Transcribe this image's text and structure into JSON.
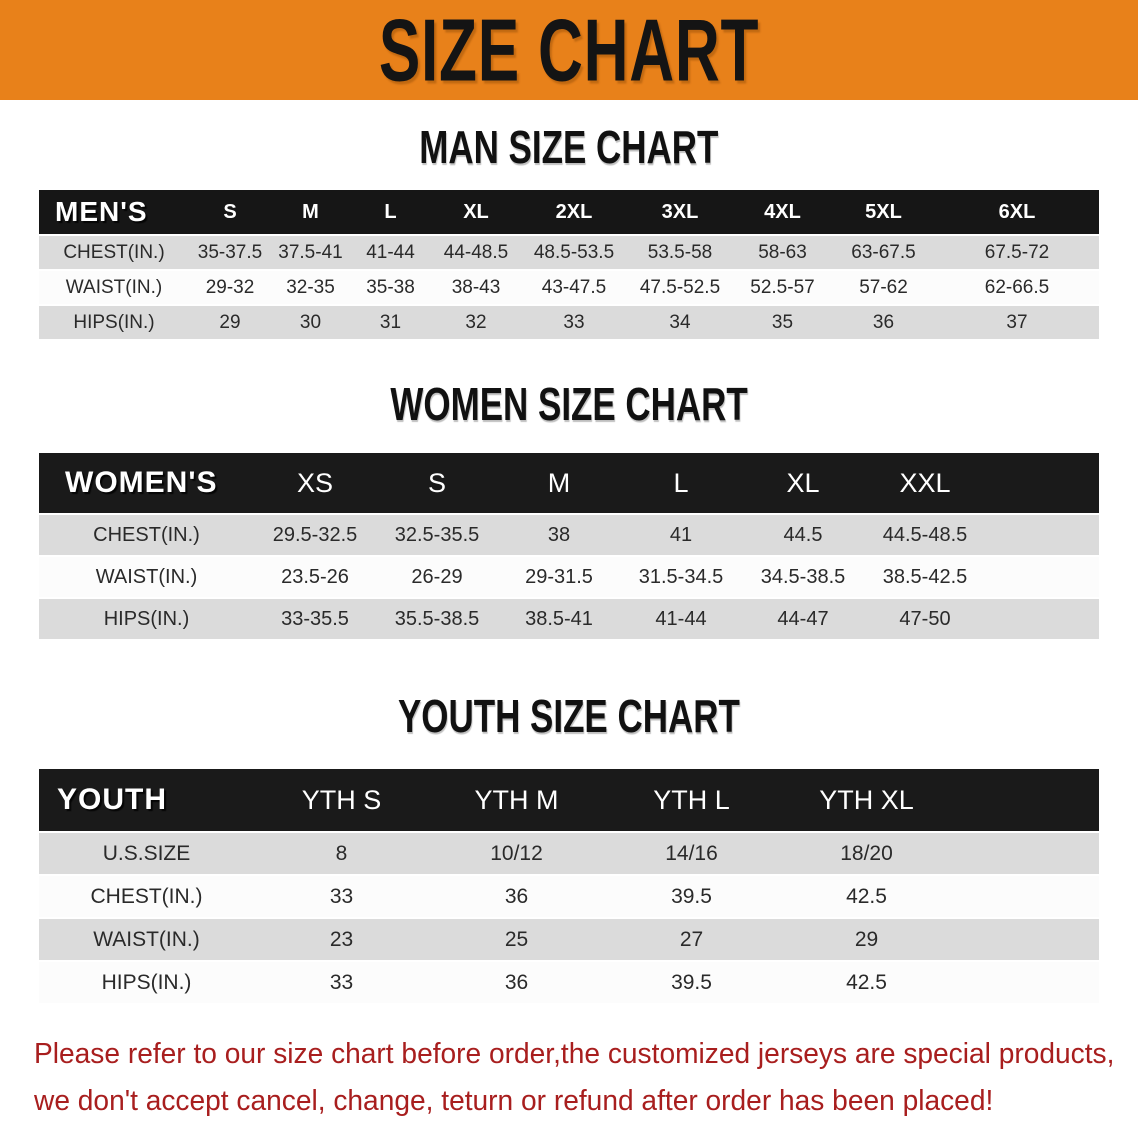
{
  "banner": {
    "title": "SIZE CHART",
    "bg_color": "#E8811A",
    "text_color": "#141414"
  },
  "colors": {
    "row_gray": "#DBDBDB",
    "row_white": "#FCFCFC",
    "header_black": "#161616",
    "footer_red": "#A81E1E"
  },
  "men": {
    "heading": "MAN SIZE CHART",
    "header_label": "MEN'S",
    "sizes": [
      "S",
      "M",
      "L",
      "XL",
      "2XL",
      "3XL",
      "4XL",
      "5XL",
      "6XL"
    ],
    "rows": [
      {
        "label": "CHEST(IN.)",
        "values": [
          "35-37.5",
          "37.5-41",
          "41-44",
          "44-48.5",
          "48.5-53.5",
          "53.5-58",
          "58-63",
          "63-67.5",
          "67.5-72"
        ]
      },
      {
        "label": "WAIST(IN.)",
        "values": [
          "29-32",
          "32-35",
          "35-38",
          "38-43",
          "43-47.5",
          "47.5-52.5",
          "52.5-57",
          "57-62",
          "62-66.5"
        ]
      },
      {
        "label": "HIPS(IN.)",
        "values": [
          "29",
          "30",
          "31",
          "32",
          "33",
          "34",
          "35",
          "36",
          "37"
        ]
      }
    ]
  },
  "women": {
    "heading": "WOMEN SIZE CHART",
    "header_label": "WOMEN'S",
    "sizes": [
      "XS",
      "S",
      "M",
      "L",
      "XL",
      "XXL"
    ],
    "rows": [
      {
        "label": "CHEST(IN.)",
        "values": [
          "29.5-32.5",
          "32.5-35.5",
          "38",
          "41",
          "44.5",
          "44.5-48.5"
        ]
      },
      {
        "label": "WAIST(IN.)",
        "values": [
          "23.5-26",
          "26-29",
          "29-31.5",
          "31.5-34.5",
          "34.5-38.5",
          "38.5-42.5"
        ]
      },
      {
        "label": "HIPS(IN.)",
        "values": [
          "33-35.5",
          "35.5-38.5",
          "38.5-41",
          "41-44",
          "44-47",
          "47-50"
        ]
      }
    ]
  },
  "youth": {
    "heading": "YOUTH SIZE CHART",
    "header_label": "YOUTH",
    "sizes": [
      "YTH S",
      "YTH M",
      "YTH L",
      "YTH XL"
    ],
    "rows": [
      {
        "label": "U.S.SIZE",
        "values": [
          "8",
          "10/12",
          "14/16",
          "18/20"
        ]
      },
      {
        "label": "CHEST(IN.)",
        "values": [
          "33",
          "36",
          "39.5",
          "42.5"
        ]
      },
      {
        "label": "WAIST(IN.)",
        "values": [
          "23",
          "25",
          "27",
          "29"
        ]
      },
      {
        "label": "HIPS(IN.)",
        "values": [
          "33",
          "36",
          "39.5",
          "42.5"
        ]
      }
    ]
  },
  "footer": {
    "line1": "Please refer to our size chart before order,the customized jerseys are special products,",
    "line2": "we don't accept cancel, change, teturn or refund after order has been placed!"
  }
}
